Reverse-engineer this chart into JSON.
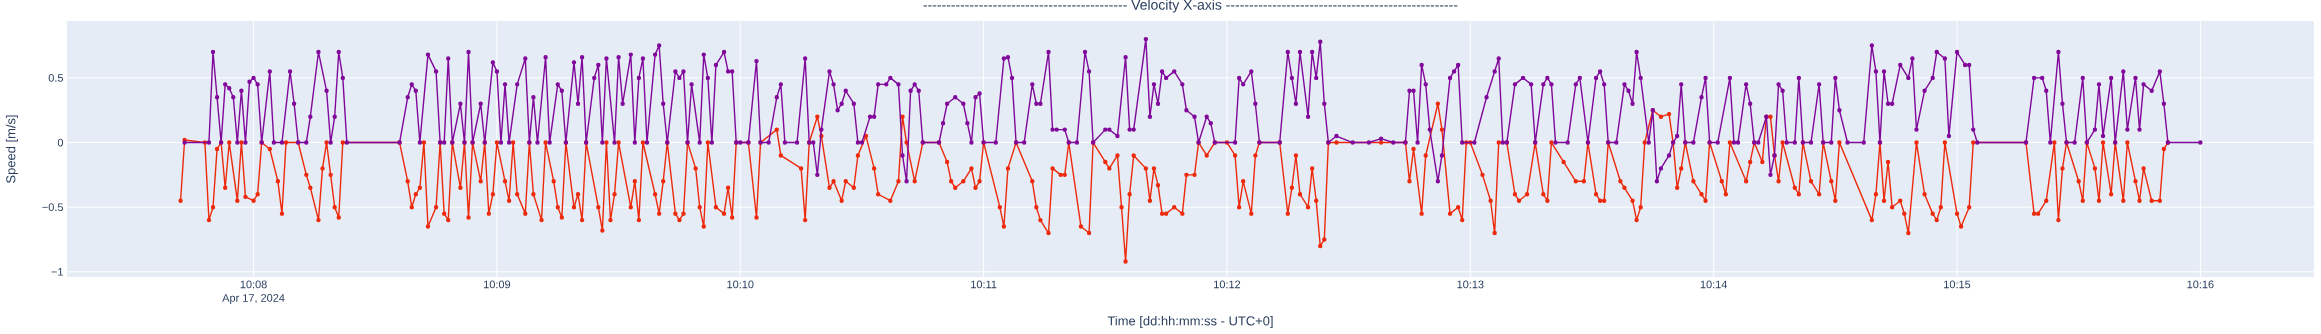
{
  "chart_data": {
    "type": "line",
    "title": "-------------------------------------------- Velocity X-axis --------------------------------------------------",
    "xlabel": "Time [dd:hh:mm:ss - UTC+0]",
    "ylabel": "Speed [m/s]",
    "annotations": [
      "Apr 17, 2024"
    ],
    "xlim": [
      "2024-04-17T10:07:14",
      "2024-04-17T10:16:28"
    ],
    "xticks": [
      {
        "value": "2024-04-17T10:08",
        "label": "10:08"
      },
      {
        "value": "2024-04-17T10:09",
        "label": "10:09"
      },
      {
        "value": "2024-04-17T10:10",
        "label": "10:10"
      },
      {
        "value": "2024-04-17T10:11",
        "label": "10:11"
      },
      {
        "value": "2024-04-17T10:12",
        "label": "10:12"
      },
      {
        "value": "2024-04-17T10:13",
        "label": "10:13"
      },
      {
        "value": "2024-04-17T10:14",
        "label": "10:14"
      },
      {
        "value": "2024-04-17T10:15",
        "label": "10:15"
      },
      {
        "value": "2024-04-17T10:16",
        "label": "10:16"
      }
    ],
    "ylim": [
      -1.04,
      0.94
    ],
    "yticks": [
      {
        "value": -1,
        "label": "−1"
      },
      {
        "value": -0.5,
        "label": "−0.5"
      },
      0,
      0.5
    ],
    "grid": true,
    "marker": "circle",
    "series": [
      {
        "color": "#ee2a0c",
        "x": [
          "2024-04-17T10:07:42",
          "2024-04-17T10:07:43",
          "2024-04-17T10:07:48",
          "2024-04-17T10:07:49",
          "2024-04-17T10:07:50",
          "2024-04-17T10:07:51",
          "2024-04-17T10:07:52",
          "2024-04-17T10:07:53",
          "2024-04-17T10:07:54",
          "2024-04-17T10:07:56",
          "2024-04-17T10:07:57",
          "2024-04-17T10:07:58",
          "2024-04-17T10:08:00",
          "2024-04-17T10:08:01",
          "2024-04-17T10:08:02",
          "2024-04-17T10:08:04",
          "2024-04-17T10:08:06",
          "2024-04-17T10:08:07",
          "2024-04-17T10:08:08",
          "2024-04-17T10:08:11",
          "2024-04-17T10:08:13",
          "2024-04-17T10:08:14",
          "2024-04-17T10:08:16",
          "2024-04-17T10:08:17",
          "2024-04-17T10:08:18",
          "2024-04-17T10:08:19",
          "2024-04-17T10:08:20",
          "2024-04-17T10:08:21",
          "2024-04-17T10:08:22",
          "2024-04-17T10:08:36",
          "2024-04-17T10:08:38",
          "2024-04-17T10:08:39",
          "2024-04-17T10:08:40",
          "2024-04-17T10:08:41",
          "2024-04-17T10:08:42",
          "2024-04-17T10:08:43",
          "2024-04-17T10:08:45",
          "2024-04-17T10:08:46",
          "2024-04-17T10:08:47",
          "2024-04-17T10:08:48",
          "2024-04-17T10:08:49",
          "2024-04-17T10:08:51",
          "2024-04-17T10:08:52",
          "2024-04-17T10:08:53",
          "2024-04-17T10:08:54",
          "2024-04-17T10:08:56",
          "2024-04-17T10:08:57",
          "2024-04-17T10:08:58",
          "2024-04-17T10:08:59",
          "2024-04-17T10:09:00",
          "2024-04-17T10:09:02",
          "2024-04-17T10:09:03",
          "2024-04-17T10:09:04",
          "2024-04-17T10:09:05",
          "2024-04-17T10:09:07",
          "2024-04-17T10:09:08",
          "2024-04-17T10:09:09",
          "2024-04-17T10:09:11",
          "2024-04-17T10:09:12",
          "2024-04-17T10:09:14",
          "2024-04-17T10:09:15",
          "2024-04-17T10:09:16",
          "2024-04-17T10:09:17",
          "2024-04-17T10:09:19",
          "2024-04-17T10:09:20",
          "2024-04-17T10:09:21",
          "2024-04-17T10:09:22",
          "2024-04-17T10:09:25",
          "2024-04-17T10:09:26",
          "2024-04-17T10:09:27",
          "2024-04-17T10:09:28",
          "2024-04-17T10:09:29",
          "2024-04-17T10:09:30",
          "2024-04-17T10:09:33",
          "2024-04-17T10:09:34",
          "2024-04-17T10:09:35",
          "2024-04-17T10:09:36",
          "2024-04-17T10:09:39",
          "2024-04-17T10:09:40",
          "2024-04-17T10:09:41",
          "2024-04-17T10:09:42",
          "2024-04-17T10:09:44",
          "2024-04-17T10:09:45",
          "2024-04-17T10:09:46",
          "2024-04-17T10:09:47",
          "2024-04-17T10:09:49",
          "2024-04-17T10:09:50",
          "2024-04-17T10:09:51",
          "2024-04-17T10:09:52",
          "2024-04-17T10:09:54",
          "2024-04-17T10:09:56",
          "2024-04-17T10:09:57",
          "2024-04-17T10:09:58",
          "2024-04-17T10:09:59",
          "2024-04-17T10:10:02",
          "2024-04-17T10:10:04",
          "2024-04-17T10:10:05",
          "2024-04-17T10:10:09",
          "2024-04-17T10:10:10",
          "2024-04-17T10:10:15",
          "2024-04-17T10:10:16",
          "2024-04-17T10:10:17",
          "2024-04-17T10:10:19",
          "2024-04-17T10:10:20",
          "2024-04-17T10:10:22",
          "2024-04-17T10:10:23",
          "2024-04-17T10:10:25",
          "2024-04-17T10:10:26",
          "2024-04-17T10:10:28",
          "2024-04-17T10:10:29",
          "2024-04-17T10:10:31",
          "2024-04-17T10:10:33",
          "2024-04-17T10:10:34",
          "2024-04-17T10:10:37",
          "2024-04-17T10:10:39",
          "2024-04-17T10:10:40",
          "2024-04-17T10:10:41",
          "2024-04-17T10:10:43",
          "2024-04-17T10:10:45",
          "2024-04-17T10:10:49",
          "2024-04-17T10:10:51",
          "2024-04-17T10:10:52",
          "2024-04-17T10:10:53",
          "2024-04-17T10:10:55",
          "2024-04-17T10:10:57",
          "2024-04-17T10:10:58",
          "2024-04-17T10:10:59",
          "2024-04-17T10:11:00",
          "2024-04-17T10:11:04",
          "2024-04-17T10:11:05",
          "2024-04-17T10:11:06",
          "2024-04-17T10:11:08",
          "2024-04-17T10:11:12",
          "2024-04-17T10:11:13",
          "2024-04-17T10:11:14",
          "2024-04-17T10:11:16",
          "2024-04-17T10:11:17",
          "2024-04-17T10:11:19",
          "2024-04-17T10:11:20",
          "2024-04-17T10:11:21",
          "2024-04-17T10:11:24",
          "2024-04-17T10:11:26",
          "2024-04-17T10:11:27",
          "2024-04-17T10:11:30",
          "2024-04-17T10:11:31",
          "2024-04-17T10:11:33",
          "2024-04-17T10:11:34",
          "2024-04-17T10:11:35",
          "2024-04-17T10:11:36",
          "2024-04-17T10:11:37",
          "2024-04-17T10:11:40",
          "2024-04-17T10:11:41",
          "2024-04-17T10:11:42",
          "2024-04-17T10:11:43",
          "2024-04-17T10:11:44",
          "2024-04-17T10:11:45",
          "2024-04-17T10:11:47",
          "2024-04-17T10:11:49",
          "2024-04-17T10:11:50",
          "2024-04-17T10:11:52",
          "2024-04-17T10:11:53",
          "2024-04-17T10:11:55",
          "2024-04-17T10:11:57",
          "2024-04-17T10:12:00",
          "2024-04-17T10:12:02",
          "2024-04-17T10:12:03",
          "2024-04-17T10:12:04",
          "2024-04-17T10:12:06",
          "2024-04-17T10:12:07",
          "2024-04-17T10:12:08",
          "2024-04-17T10:12:13",
          "2024-04-17T10:12:15",
          "2024-04-17T10:12:16",
          "2024-04-17T10:12:17",
          "2024-04-17T10:12:18",
          "2024-04-17T10:12:20",
          "2024-04-17T10:12:21",
          "2024-04-17T10:12:22",
          "2024-04-17T10:12:23",
          "2024-04-17T10:12:24",
          "2024-04-17T10:12:25",
          "2024-04-17T10:12:27",
          "2024-04-17T10:12:38",
          "2024-04-17T10:12:44",
          "2024-04-17T10:12:45",
          "2024-04-17T10:12:46",
          "2024-04-17T10:12:48",
          "2024-04-17T10:12:49",
          "2024-04-17T10:12:52",
          "2024-04-17T10:12:53",
          "2024-04-17T10:12:55",
          "2024-04-17T10:12:57",
          "2024-04-17T10:12:58",
          "2024-04-17T10:12:59",
          "2024-04-17T10:13:00",
          "2024-04-17T10:13:03",
          "2024-04-17T10:13:05",
          "2024-04-17T10:13:06",
          "2024-04-17T10:13:07",
          "2024-04-17T10:13:09",
          "2024-04-17T10:13:11",
          "2024-04-17T10:13:12",
          "2024-04-17T10:13:14",
          "2024-04-17T10:13:16",
          "2024-04-17T10:13:18",
          "2024-04-17T10:13:19",
          "2024-04-17T10:13:20",
          "2024-04-17T10:13:23",
          "2024-04-17T10:13:26",
          "2024-04-17T10:13:28",
          "2024-04-17T10:13:29",
          "2024-04-17T10:13:31",
          "2024-04-17T10:13:32",
          "2024-04-17T10:13:33",
          "2024-04-17T10:13:34",
          "2024-04-17T10:13:37",
          "2024-04-17T10:13:38",
          "2024-04-17T10:13:40",
          "2024-04-17T10:13:41",
          "2024-04-17T10:13:42",
          "2024-04-17T10:13:43",
          "2024-04-17T10:13:45",
          "2024-04-17T10:13:47",
          "2024-04-17T10:13:49",
          "2024-04-17T10:13:50",
          "2024-04-17T10:13:51",
          "2024-04-17T10:13:52",
          "2024-04-17T10:13:53",
          "2024-04-17T10:13:55",
          "2024-04-17T10:13:57",
          "2024-04-17T10:13:58",
          "2024-04-17T10:13:59",
          "2024-04-17T10:14:02",
          "2024-04-17T10:14:03",
          "2024-04-17T10:14:04",
          "2024-04-17T10:14:08",
          "2024-04-17T10:14:09",
          "2024-04-17T10:14:10",
          "2024-04-17T10:14:12",
          "2024-04-17T10:14:13",
          "2024-04-17T10:14:14",
          "2024-04-17T10:14:15",
          "2024-04-17T10:14:16",
          "2024-04-17T10:14:17",
          "2024-04-17T10:14:20",
          "2024-04-17T10:14:21",
          "2024-04-17T10:14:22",
          "2024-04-17T10:14:24",
          "2024-04-17T10:14:26",
          "2024-04-17T10:14:27",
          "2024-04-17T10:14:29",
          "2024-04-17T10:14:30",
          "2024-04-17T10:14:31",
          "2024-04-17T10:14:39",
          "2024-04-17T10:14:40",
          "2024-04-17T10:14:41",
          "2024-04-17T10:14:42",
          "2024-04-17T10:14:43",
          "2024-04-17T10:14:44",
          "2024-04-17T10:14:46",
          "2024-04-17T10:14:47",
          "2024-04-17T10:14:48",
          "2024-04-17T10:14:50",
          "2024-04-17T10:14:52",
          "2024-04-17T10:14:54",
          "2024-04-17T10:14:55",
          "2024-04-17T10:14:56",
          "2024-04-17T10:14:57",
          "2024-04-17T10:15:00",
          "2024-04-17T10:15:01",
          "2024-04-17T10:15:03",
          "2024-04-17T10:15:04",
          "2024-04-17T10:15:17",
          "2024-04-17T10:15:19",
          "2024-04-17T10:15:20",
          "2024-04-17T10:15:22",
          "2024-04-17T10:15:24",
          "2024-04-17T10:15:25",
          "2024-04-17T10:15:26",
          "2024-04-17T10:15:27",
          "2024-04-17T10:15:30",
          "2024-04-17T10:15:31",
          "2024-04-17T10:15:32",
          "2024-04-17T10:15:34",
          "2024-04-17T10:15:35",
          "2024-04-17T10:15:36",
          "2024-04-17T10:15:38",
          "2024-04-17T10:15:39",
          "2024-04-17T10:15:41",
          "2024-04-17T10:15:42",
          "2024-04-17T10:15:44",
          "2024-04-17T10:15:45",
          "2024-04-17T10:15:46",
          "2024-04-17T10:15:48",
          "2024-04-17T10:15:50",
          "2024-04-17T10:15:51",
          "2024-04-17T10:15:52"
        ],
        "values": [
          -0.45,
          0.02,
          0,
          -0.6,
          -0.5,
          -0.05,
          0,
          -0.35,
          0,
          -0.45,
          0,
          -0.42,
          -0.45,
          -0.4,
          0,
          -0.05,
          -0.3,
          -0.55,
          0,
          0,
          -0.25,
          -0.35,
          -0.6,
          -0.2,
          0,
          -0.25,
          -0.5,
          -0.58,
          0,
          0,
          -0.3,
          -0.5,
          -0.4,
          -0.35,
          0,
          -0.65,
          -0.5,
          0,
          -0.55,
          -0.6,
          0,
          -0.35,
          0,
          -0.58,
          0,
          -0.3,
          0,
          -0.55,
          -0.4,
          0,
          -0.3,
          -0.45,
          0,
          -0.4,
          -0.55,
          0,
          -0.4,
          -0.6,
          0,
          -0.3,
          -0.5,
          -0.58,
          0,
          -0.5,
          -0.4,
          -0.6,
          0,
          -0.5,
          -0.68,
          0,
          -0.6,
          -0.4,
          0,
          -0.5,
          -0.3,
          -0.6,
          0,
          -0.4,
          -0.55,
          -0.3,
          0,
          -0.55,
          -0.6,
          -0.55,
          0,
          -0.2,
          -0.5,
          -0.65,
          0,
          -0.5,
          -0.55,
          -0.35,
          -0.58,
          0,
          0,
          -0.58,
          0,
          0.1,
          -0.1,
          -0.2,
          -0.6,
          0,
          0.2,
          0.05,
          -0.35,
          -0.3,
          -0.45,
          -0.3,
          -0.35,
          -0.1,
          0.05,
          -0.2,
          -0.4,
          -0.45,
          -0.3,
          0.2,
          0,
          -0.3,
          0,
          0,
          -0.15,
          -0.3,
          -0.35,
          -0.3,
          -0.2,
          -0.35,
          -0.3,
          0,
          -0.5,
          -0.65,
          -0.2,
          0,
          -0.3,
          -0.5,
          -0.6,
          -0.7,
          -0.2,
          -0.25,
          -0.25,
          0,
          -0.65,
          -0.7,
          0,
          -0.15,
          -0.2,
          -0.1,
          -0.5,
          -0.92,
          -0.4,
          -0.1,
          -0.2,
          -0.45,
          -0.2,
          -0.33,
          -0.55,
          -0.55,
          -0.5,
          -0.55,
          -0.25,
          -0.25,
          0,
          -0.1,
          0,
          0,
          -0.1,
          -0.5,
          -0.3,
          -0.55,
          -0.1,
          0,
          0,
          -0.55,
          -0.35,
          -0.1,
          -0.4,
          -0.5,
          -0.2,
          -0.45,
          -0.8,
          -0.75,
          0,
          0,
          0,
          0,
          -0.3,
          -0.05,
          -0.55,
          -0.1,
          0.3,
          0.1,
          -0.55,
          -0.5,
          -0.6,
          0,
          0,
          -0.25,
          -0.45,
          -0.7,
          0,
          0,
          -0.4,
          -0.45,
          -0.4,
          0,
          -0.4,
          -0.45,
          0,
          -0.15,
          -0.3,
          -0.3,
          0,
          -0.4,
          -0.45,
          -0.45,
          0,
          -0.3,
          -0.35,
          -0.45,
          -0.6,
          -0.5,
          0,
          0.25,
          0.2,
          0.22,
          0,
          -0.35,
          -0.2,
          0,
          -0.3,
          -0.4,
          -0.45,
          0,
          -0.3,
          -0.4,
          0,
          -0.3,
          -0.15,
          0,
          -0.15,
          0.2,
          0.2,
          -0.1,
          -0.3,
          0,
          -0.35,
          -0.4,
          0,
          -0.3,
          -0.4,
          0,
          -0.3,
          -0.45,
          0,
          -0.6,
          -0.4,
          0,
          -0.45,
          -0.15,
          -0.5,
          -0.45,
          -0.55,
          -0.7,
          0,
          -0.4,
          -0.55,
          -0.6,
          -0.5,
          0,
          -0.55,
          -0.65,
          -0.5,
          0,
          0,
          -0.55,
          -0.55,
          -0.45,
          0,
          -0.6,
          -0.2,
          0,
          -0.3,
          -0.45,
          0,
          -0.2,
          -0.45,
          0,
          -0.4,
          0,
          -0.45,
          0,
          -0.3,
          -0.45,
          -0.2,
          -0.45,
          -0.45,
          -0.05,
          0
        ]
      },
      {
        "color": "#80089a",
        "x": [
          "2024-04-17T10:07:43",
          "2024-04-17T10:07:49",
          "2024-04-17T10:07:50",
          "2024-04-17T10:07:51",
          "2024-04-17T10:07:52",
          "2024-04-17T10:07:53",
          "2024-04-17T10:07:54",
          "2024-04-17T10:07:55",
          "2024-04-17T10:07:56",
          "2024-04-17T10:07:57",
          "2024-04-17T10:07:58",
          "2024-04-17T10:07:59",
          "2024-04-17T10:08:00",
          "2024-04-17T10:08:01",
          "2024-04-17T10:08:02",
          "2024-04-17T10:08:04",
          "2024-04-17T10:08:05",
          "2024-04-17T10:08:07",
          "2024-04-17T10:08:09",
          "2024-04-17T10:08:10",
          "2024-04-17T10:08:11",
          "2024-04-17T10:08:13",
          "2024-04-17T10:08:14",
          "2024-04-17T10:08:16",
          "2024-04-17T10:08:18",
          "2024-04-17T10:08:19",
          "2024-04-17T10:08:20",
          "2024-04-17T10:08:21",
          "2024-04-17T10:08:22",
          "2024-04-17T10:08:23",
          "2024-04-17T10:08:36",
          "2024-04-17T10:08:38",
          "2024-04-17T10:08:39",
          "2024-04-17T10:08:40",
          "2024-04-17T10:08:41",
          "2024-04-17T10:08:43",
          "2024-04-17T10:08:45",
          "2024-04-17T10:08:46",
          "2024-04-17T10:08:47",
          "2024-04-17T10:08:48",
          "2024-04-17T10:08:49",
          "2024-04-17T10:08:51",
          "2024-04-17T10:08:52",
          "2024-04-17T10:08:53",
          "2024-04-17T10:08:54",
          "2024-04-17T10:08:56",
          "2024-04-17T10:08:57",
          "2024-04-17T10:08:59",
          "2024-04-17T10:09:00",
          "2024-04-17T10:09:01",
          "2024-04-17T10:09:02",
          "2024-04-17T10:09:03",
          "2024-04-17T10:09:05",
          "2024-04-17T10:09:07",
          "2024-04-17T10:09:08",
          "2024-04-17T10:09:09",
          "2024-04-17T10:09:10",
          "2024-04-17T10:09:12",
          "2024-04-17T10:09:13",
          "2024-04-17T10:09:15",
          "2024-04-17T10:09:16",
          "2024-04-17T10:09:17",
          "2024-04-17T10:09:19",
          "2024-04-17T10:09:20",
          "2024-04-17T10:09:21",
          "2024-04-17T10:09:22",
          "2024-04-17T10:09:24",
          "2024-04-17T10:09:25",
          "2024-04-17T10:09:26",
          "2024-04-17T10:09:27",
          "2024-04-17T10:09:29",
          "2024-04-17T10:09:30",
          "2024-04-17T10:09:31",
          "2024-04-17T10:09:33",
          "2024-04-17T10:09:34",
          "2024-04-17T10:09:35",
          "2024-04-17T10:09:36",
          "2024-04-17T10:09:37",
          "2024-04-17T10:09:39",
          "2024-04-17T10:09:40",
          "2024-04-17T10:09:41",
          "2024-04-17T10:09:42",
          "2024-04-17T10:09:44",
          "2024-04-17T10:09:45",
          "2024-04-17T10:09:46",
          "2024-04-17T10:09:47",
          "2024-04-17T10:09:48",
          "2024-04-17T10:09:50",
          "2024-04-17T10:09:51",
          "2024-04-17T10:09:52",
          "2024-04-17T10:09:53",
          "2024-04-17T10:09:54",
          "2024-04-17T10:09:56",
          "2024-04-17T10:09:57",
          "2024-04-17T10:09:58",
          "2024-04-17T10:09:59",
          "2024-04-17T10:10:00",
          "2024-04-17T10:10:02",
          "2024-04-17T10:10:04",
          "2024-04-17T10:10:05",
          "2024-04-17T10:10:07",
          "2024-04-17T10:10:09",
          "2024-04-17T10:10:10",
          "2024-04-17T10:10:11",
          "2024-04-17T10:10:14",
          "2024-04-17T10:10:16",
          "2024-04-17T10:10:17",
          "2024-04-17T10:10:18",
          "2024-04-17T10:10:19",
          "2024-04-17T10:10:20",
          "2024-04-17T10:10:22",
          "2024-04-17T10:10:23",
          "2024-04-17T10:10:24",
          "2024-04-17T10:10:25",
          "2024-04-17T10:10:26",
          "2024-04-17T10:10:28",
          "2024-04-17T10:10:29",
          "2024-04-17T10:10:30",
          "2024-04-17T10:10:32",
          "2024-04-17T10:10:33",
          "2024-04-17T10:10:34",
          "2024-04-17T10:10:36",
          "2024-04-17T10:10:37",
          "2024-04-17T10:10:39",
          "2024-04-17T10:10:40",
          "2024-04-17T10:10:41",
          "2024-04-17T10:10:42",
          "2024-04-17T10:10:43",
          "2024-04-17T10:10:44",
          "2024-04-17T10:10:45",
          "2024-04-17T10:10:49",
          "2024-04-17T10:10:50",
          "2024-04-17T10:10:51",
          "2024-04-17T10:10:53",
          "2024-04-17T10:10:55",
          "2024-04-17T10:10:56",
          "2024-04-17T10:10:57",
          "2024-04-17T10:10:58",
          "2024-04-17T10:10:59",
          "2024-04-17T10:11:00",
          "2024-04-17T10:11:03",
          "2024-04-17T10:11:05",
          "2024-04-17T10:11:06",
          "2024-04-17T10:11:07",
          "2024-04-17T10:11:08",
          "2024-04-17T10:11:10",
          "2024-04-17T10:11:12",
          "2024-04-17T10:11:13",
          "2024-04-17T10:11:14",
          "2024-04-17T10:11:16",
          "2024-04-17T10:11:17",
          "2024-04-17T10:11:18",
          "2024-04-17T10:11:20",
          "2024-04-17T10:11:21",
          "2024-04-17T10:11:23",
          "2024-04-17T10:11:25",
          "2024-04-17T10:11:26",
          "2024-04-17T10:11:27",
          "2024-04-17T10:11:30",
          "2024-04-17T10:11:31",
          "2024-04-17T10:11:33",
          "2024-04-17T10:11:35",
          "2024-04-17T10:11:36",
          "2024-04-17T10:11:37",
          "2024-04-17T10:11:40",
          "2024-04-17T10:11:41",
          "2024-04-17T10:11:42",
          "2024-04-17T10:11:43",
          "2024-04-17T10:11:44",
          "2024-04-17T10:11:45",
          "2024-04-17T10:11:47",
          "2024-04-17T10:11:49",
          "2024-04-17T10:11:50",
          "2024-04-17T10:11:52",
          "2024-04-17T10:11:53",
          "2024-04-17T10:11:55",
          "2024-04-17T10:11:56",
          "2024-04-17T10:11:57",
          "2024-04-17T10:12:02",
          "2024-04-17T10:12:03",
          "2024-04-17T10:12:04",
          "2024-04-17T10:12:06",
          "2024-04-17T10:12:07",
          "2024-04-17T10:12:08",
          "2024-04-17T10:12:13",
          "2024-04-17T10:12:15",
          "2024-04-17T10:12:16",
          "2024-04-17T10:12:17",
          "2024-04-17T10:12:18",
          "2024-04-17T10:12:20",
          "2024-04-17T10:12:21",
          "2024-04-17T10:12:22",
          "2024-04-17T10:12:23",
          "2024-04-17T10:12:24",
          "2024-04-17T10:12:25",
          "2024-04-17T10:12:27",
          "2024-04-17T10:12:31",
          "2024-04-17T10:12:35",
          "2024-04-17T10:12:38",
          "2024-04-17T10:12:41",
          "2024-04-17T10:12:44",
          "2024-04-17T10:12:45",
          "2024-04-17T10:12:46",
          "2024-04-17T10:12:47",
          "2024-04-17T10:12:48",
          "2024-04-17T10:12:49",
          "2024-04-17T10:12:50",
          "2024-04-17T10:12:52",
          "2024-04-17T10:12:53",
          "2024-04-17T10:12:55",
          "2024-04-17T10:12:56",
          "2024-04-17T10:12:57",
          "2024-04-17T10:12:58",
          "2024-04-17T10:13:01",
          "2024-04-17T10:13:04",
          "2024-04-17T10:13:06",
          "2024-04-17T10:13:07",
          "2024-04-17T10:13:08",
          "2024-04-17T10:13:09",
          "2024-04-17T10:13:11",
          "2024-04-17T10:13:13",
          "2024-04-17T10:13:15",
          "2024-04-17T10:13:16",
          "2024-04-17T10:13:18",
          "2024-04-17T10:13:19",
          "2024-04-17T10:13:20",
          "2024-04-17T10:13:21",
          "2024-04-17T10:13:24",
          "2024-04-17T10:13:26",
          "2024-04-17T10:13:27",
          "2024-04-17T10:13:29",
          "2024-04-17T10:13:31",
          "2024-04-17T10:13:32",
          "2024-04-17T10:13:33",
          "2024-04-17T10:13:34",
          "2024-04-17T10:13:36",
          "2024-04-17T10:13:38",
          "2024-04-17T10:13:39",
          "2024-04-17T10:13:40",
          "2024-04-17T10:13:41",
          "2024-04-17T10:13:42",
          "2024-04-17T10:13:44",
          "2024-04-17T10:13:45",
          "2024-04-17T10:13:46",
          "2024-04-17T10:13:47",
          "2024-04-17T10:13:49",
          "2024-04-17T10:13:50",
          "2024-04-17T10:13:51",
          "2024-04-17T10:13:52",
          "2024-04-17T10:13:53",
          "2024-04-17T10:13:55",
          "2024-04-17T10:13:57",
          "2024-04-17T10:13:58",
          "2024-04-17T10:13:59",
          "2024-04-17T10:14:01",
          "2024-04-17T10:14:04",
          "2024-04-17T10:14:05",
          "2024-04-17T10:14:06",
          "2024-04-17T10:14:08",
          "2024-04-17T10:14:09",
          "2024-04-17T10:14:10",
          "2024-04-17T10:14:11",
          "2024-04-17T10:14:13",
          "2024-04-17T10:14:14",
          "2024-04-17T10:14:15",
          "2024-04-17T10:14:16",
          "2024-04-17T10:14:17",
          "2024-04-17T10:14:18",
          "2024-04-17T10:14:20",
          "2024-04-17T10:14:21",
          "2024-04-17T10:14:22",
          "2024-04-17T10:14:24",
          "2024-04-17T10:14:26",
          "2024-04-17T10:14:27",
          "2024-04-17T10:14:29",
          "2024-04-17T10:14:30",
          "2024-04-17T10:14:31",
          "2024-04-17T10:14:33",
          "2024-04-17T10:14:37",
          "2024-04-17T10:14:39",
          "2024-04-17T10:14:40",
          "2024-04-17T10:14:41",
          "2024-04-17T10:14:42",
          "2024-04-17T10:14:43",
          "2024-04-17T10:14:44",
          "2024-04-17T10:14:46",
          "2024-04-17T10:14:48",
          "2024-04-17T10:14:49",
          "2024-04-17T10:14:50",
          "2024-04-17T10:14:52",
          "2024-04-17T10:14:54",
          "2024-04-17T10:14:55",
          "2024-04-17T10:14:57",
          "2024-04-17T10:14:58",
          "2024-04-17T10:15:00",
          "2024-04-17T10:15:02",
          "2024-04-17T10:15:03",
          "2024-04-17T10:15:04",
          "2024-04-17T10:15:05",
          "2024-04-17T10:15:17",
          "2024-04-17T10:15:19",
          "2024-04-17T10:15:21",
          "2024-04-17T10:15:22",
          "2024-04-17T10:15:23",
          "2024-04-17T10:15:25",
          "2024-04-17T10:15:26",
          "2024-04-17T10:15:27",
          "2024-04-17T10:15:29",
          "2024-04-17T10:15:31",
          "2024-04-17T10:15:32",
          "2024-04-17T10:15:34",
          "2024-04-17T10:15:35",
          "2024-04-17T10:15:36",
          "2024-04-17T10:15:38",
          "2024-04-17T10:15:39",
          "2024-04-17T10:15:41",
          "2024-04-17T10:15:42",
          "2024-04-17T10:15:44",
          "2024-04-17T10:15:45",
          "2024-04-17T10:15:46",
          "2024-04-17T10:15:48",
          "2024-04-17T10:15:50",
          "2024-04-17T10:15:51",
          "2024-04-17T10:15:52",
          "2024-04-17T10:16:00"
        ],
        "values": [
          0,
          0,
          0.7,
          0.35,
          0,
          0.45,
          0.42,
          0.35,
          0,
          0.4,
          0,
          0.47,
          0.5,
          0.45,
          0,
          0.55,
          0,
          0,
          0.55,
          0.3,
          0,
          0,
          0.2,
          0.7,
          0.4,
          0,
          0.2,
          0.7,
          0.5,
          0,
          0,
          0.35,
          0.45,
          0.4,
          0,
          0.68,
          0.55,
          0,
          0,
          0.65,
          0,
          0.3,
          0,
          0.7,
          0,
          0.3,
          0,
          0.62,
          0.55,
          0,
          0.45,
          0,
          0.45,
          0.65,
          0,
          0.35,
          0,
          0.66,
          0,
          0.45,
          0.4,
          0,
          0.62,
          0.3,
          0.66,
          0,
          0.5,
          0.6,
          0,
          0.65,
          0,
          0.66,
          0.3,
          0.68,
          0,
          0.5,
          0.65,
          0,
          0.68,
          0.75,
          0.3,
          0,
          0.55,
          0.5,
          0.55,
          0,
          0.45,
          0,
          0.68,
          0.5,
          0,
          0.6,
          0.7,
          0.55,
          0.55,
          0,
          0,
          0,
          0.63,
          0,
          0,
          0.35,
          0.45,
          0,
          0,
          0.65,
          0,
          0,
          -0.25,
          0.1,
          0.55,
          0.45,
          0.25,
          0.3,
          0.4,
          0.3,
          0,
          0,
          0.2,
          0.2,
          0.45,
          0.45,
          0.5,
          0.45,
          -0.1,
          -0.3,
          0.4,
          0.45,
          0.4,
          0,
          0,
          0.15,
          0.3,
          0.35,
          0.3,
          0.15,
          0,
          0.35,
          0.38,
          0,
          0,
          0.65,
          0.66,
          0.5,
          0,
          0,
          0.45,
          0.3,
          0.3,
          0.7,
          0.1,
          0.1,
          0.1,
          0,
          0,
          0.7,
          0.55,
          0,
          0.1,
          0.1,
          0.05,
          0.66,
          0.1,
          0.1,
          0.8,
          0.2,
          0.45,
          0.3,
          0.55,
          0.5,
          0.55,
          0.45,
          0.25,
          0.2,
          0,
          0.2,
          0.15,
          0,
          0,
          0.5,
          0.45,
          0.55,
          0.3,
          0,
          0,
          0.7,
          0.5,
          0.3,
          0.7,
          0.2,
          0.7,
          0.5,
          0.78,
          0.3,
          0,
          0.05,
          0,
          0,
          0.03,
          0,
          0,
          0.4,
          0.4,
          0,
          0.6,
          0.45,
          0.1,
          -0.3,
          -0.1,
          0.5,
          0.55,
          0.6,
          0,
          0,
          0.35,
          0.55,
          0.65,
          0,
          0,
          0.45,
          0.5,
          0.45,
          0,
          0.45,
          0.5,
          0.45,
          0,
          0,
          0.45,
          0.5,
          0,
          0.5,
          0.55,
          0.45,
          0,
          0,
          0.45,
          0.4,
          0.3,
          0.7,
          0.5,
          0,
          0.25,
          -0.3,
          -0.2,
          -0.1,
          0,
          0.05,
          0.45,
          0,
          0,
          0.35,
          0.5,
          0,
          0,
          0.5,
          0,
          0,
          0.45,
          0.3,
          0,
          0,
          0.2,
          -0.25,
          -0.1,
          0.45,
          0.4,
          0,
          0,
          0.5,
          0,
          0,
          0.45,
          0,
          0,
          0.5,
          0.25,
          0,
          0,
          0.75,
          0.55,
          0,
          0.55,
          0.3,
          0.3,
          0.6,
          0.5,
          0.65,
          0.1,
          0.4,
          0.5,
          0.7,
          0.65,
          0.05,
          0.7,
          0.6,
          0.6,
          0.1,
          0,
          0,
          0.5,
          0.5,
          0.4,
          0,
          0.7,
          0.3,
          0,
          0,
          0.5,
          0,
          0.1,
          0.45,
          0.05,
          0.5,
          0,
          0.55,
          0.1,
          0.5,
          0.1,
          0.45,
          0.4,
          0.55,
          0.3,
          0,
          0
        ]
      }
    ]
  }
}
